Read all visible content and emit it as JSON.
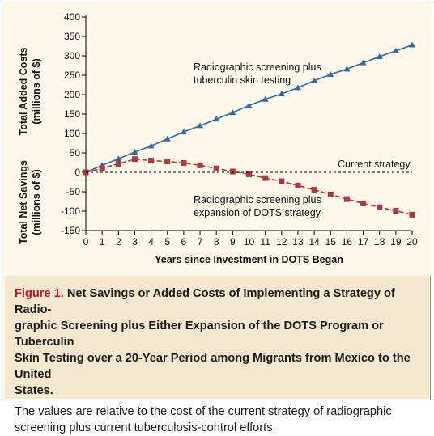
{
  "figure": {
    "label": "Figure 1.",
    "title": "Net Savings or Added Costs of Implementing a Strategy of Radiographic Screening plus Either Expansion of the DOTS Program or Tuberculin Skin Testing over a 20-Year Period among Migrants from Mexico to the United States.",
    "title_lines": [
      "Net Savings or Added Costs of Implementing a Strategy of Radio-",
      "graphic Screening plus Either Expansion of the DOTS Program or Tuberculin",
      "Skin Testing over a 20-Year Period among Migrants from Mexico to the United",
      "States."
    ],
    "note_lines": [
      "The values are relative to the cost of the current strategy of radiographic",
      "screening plus current tuberculosis-control efforts."
    ]
  },
  "colors": {
    "frame_bg": "#fdf8ea",
    "caption_bg": "#f3e8cf",
    "figure_label": "#c8102e",
    "series_tst": "#2e6aa8",
    "series_dots": "#b0373a",
    "zero_line": "#000000"
  },
  "chart_data": {
    "type": "line",
    "xlabel": "Years since Investment in DOTS Began",
    "ylabel_top": [
      "Total Added Costs",
      "(millions of $)"
    ],
    "ylabel_bottom": [
      "Total Net Savings",
      "(millions of $)"
    ],
    "xlim": [
      0,
      20
    ],
    "ylim": [
      -150,
      400
    ],
    "x_ticks": [
      0,
      1,
      2,
      3,
      4,
      5,
      6,
      7,
      8,
      9,
      10,
      11,
      12,
      13,
      14,
      15,
      16,
      17,
      18,
      19,
      20
    ],
    "y_ticks": [
      -150,
      -100,
      -50,
      0,
      50,
      100,
      150,
      200,
      250,
      300,
      350,
      400
    ],
    "grid": false,
    "x": [
      0,
      1,
      2,
      3,
      4,
      5,
      6,
      7,
      8,
      9,
      10,
      11,
      12,
      13,
      14,
      15,
      16,
      17,
      18,
      19,
      20
    ],
    "series": [
      {
        "key": "tst",
        "marker": "triangle",
        "annotation": [
          "Radiographic screening plus",
          "tuberculin skin testing"
        ],
        "values": [
          0,
          18,
          35,
          52,
          68,
          86,
          104,
          120,
          137,
          154,
          172,
          188,
          202,
          218,
          236,
          252,
          266,
          282,
          298,
          313,
          328
        ]
      },
      {
        "key": "dots",
        "marker": "square",
        "annotation": [
          "Radiographic screening plus",
          "expansion of DOTS strategy"
        ],
        "values": [
          0,
          10,
          22,
          34,
          30,
          28,
          24,
          18,
          10,
          2,
          -5,
          -15,
          -23,
          -34,
          -45,
          -57,
          -69,
          -80,
          -90,
          -99,
          -109
        ]
      },
      {
        "key": "current",
        "marker": "none",
        "line": "dashed",
        "annotation": [
          "Current strategy"
        ],
        "values": [
          0,
          0,
          0,
          0,
          0,
          0,
          0,
          0,
          0,
          0,
          0,
          0,
          0,
          0,
          0,
          0,
          0,
          0,
          0,
          0,
          0
        ]
      }
    ]
  }
}
